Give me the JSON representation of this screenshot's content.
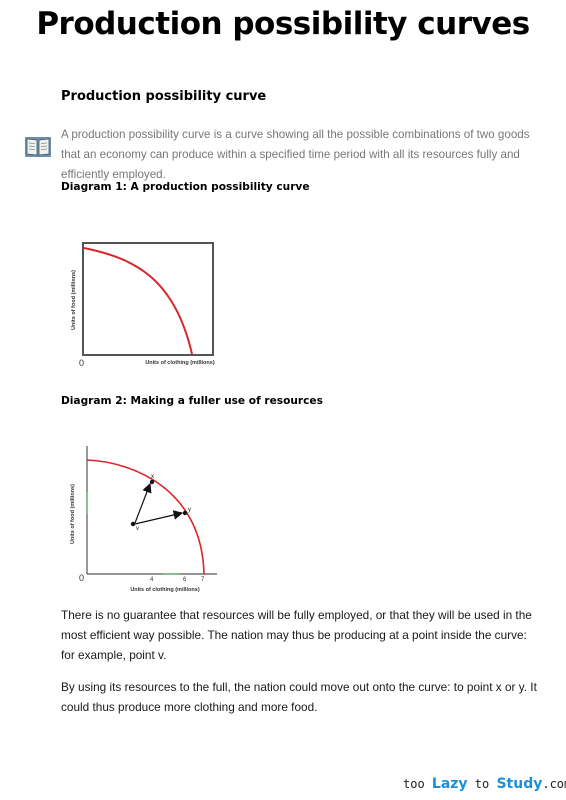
{
  "page": {
    "title": "Production possibility curves",
    "section_heading": "Production possibility curve",
    "definition": "A production possibility curve is a curve showing all the possible combinations of two goods that an economy can produce within a specified time period with all its resources fully and efficiently employed.",
    "book_icon": "open-book-icon"
  },
  "diagram1": {
    "heading": "Diagram 1: A production possibility curve",
    "origin_label": "0"
  },
  "diagram2": {
    "heading": "Diagram 2: Making a fuller use of resources",
    "origin_label": "0",
    "point_labels": [
      "x",
      "y",
      "v"
    ]
  },
  "body": {
    "paragraph1": "There is no guarantee that resources will be fully employed, or that they will be used in the most efficient way possible. The nation may thus be producing at a point inside the curve: for example, point v.",
    "paragraph2": "By using its resources to the full, the nation could move out onto the curve: to point x or y. It could thus produce more clothing and more food."
  },
  "footer": {
    "part1": "too ",
    "part2": "Lazy",
    "part3": " to ",
    "part4": "Study",
    "part5": ".com",
    "brand_color": "#1e8fd6"
  },
  "chart_data": [
    {
      "type": "line",
      "xlabel": "Units of clothing (millions)",
      "ylabel": "Units of food (millions)",
      "tick_labels": [
        "0"
      ],
      "grid": false,
      "series": [
        {
          "x": [
            0,
            0.2,
            0.4,
            0.6,
            0.8,
            1.0
          ],
          "y": [
            1.0,
            0.96,
            0.87,
            0.72,
            0.5,
            0.0
          ]
        }
      ]
    },
    {
      "type": "line",
      "xlabel": "Units of clothing (millions)",
      "ylabel": "Units of food (millions)",
      "tick_labels": [
        "0",
        "4",
        "6",
        "7"
      ],
      "xlim": [
        0,
        7
      ],
      "grid": false,
      "points": [
        {
          "label": "x",
          "x": 4,
          "y": 5.6
        },
        {
          "label": "y",
          "x": 6,
          "y": 3.6
        },
        {
          "label": "v",
          "x": 3,
          "y": 3.2
        }
      ],
      "arrows": [
        {
          "from": "v",
          "to": "x"
        },
        {
          "from": "v",
          "to": "y"
        }
      ],
      "series": [
        {
          "x": [
            0,
            2,
            4,
            6,
            7
          ],
          "y": [
            7,
            6.7,
            5.6,
            3.6,
            0
          ]
        }
      ]
    }
  ]
}
